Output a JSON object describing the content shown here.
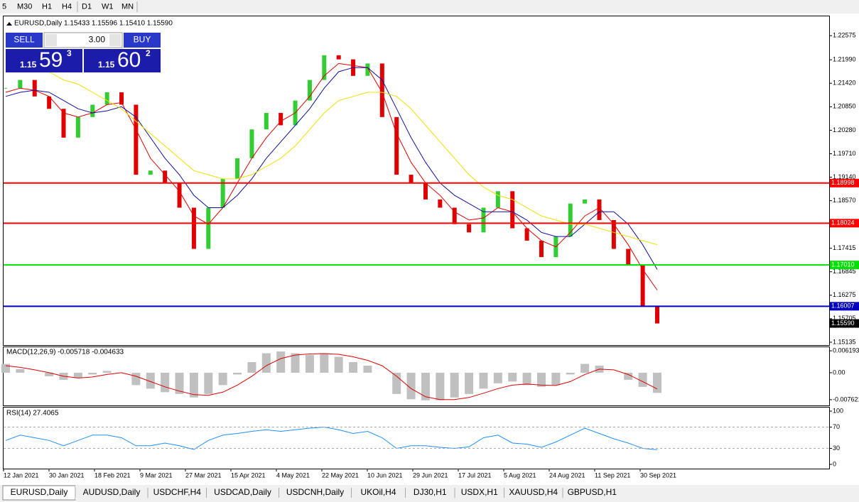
{
  "toolbar": {
    "timeframes": [
      "5",
      "M30",
      "H1",
      "H4",
      "D1",
      "W1",
      "MN"
    ]
  },
  "trade_panel": {
    "sell": "SELL",
    "buy": "BUY",
    "volume": "3.00",
    "sell_price": {
      "big": "1.15",
      "pips": "59",
      "point": "3"
    },
    "buy_price": {
      "big": "1.15",
      "pips": "60",
      "point": "2"
    }
  },
  "chart_data": [
    {
      "type": "candlestick",
      "title": "EURUSD,Daily",
      "subtitle": "1.15433 1.15596 1.15410 1.15590",
      "up_color": "#32cd32",
      "down_color": "#e00000",
      "values": [
        1.213,
        1.215,
        1.211,
        1.208,
        1.201,
        1.206,
        1.209,
        1.212,
        1.209,
        1.192,
        1.193,
        1.19,
        1.184,
        1.174,
        1.184,
        1.191,
        1.196,
        1.203,
        1.207,
        1.204,
        1.21,
        1.215,
        1.221,
        1.22,
        1.216,
        1.219,
        1.206,
        1.192,
        1.19,
        1.186,
        1.184,
        1.18,
        1.178,
        1.184,
        1.188,
        1.179,
        1.176,
        1.172,
        1.177,
        1.185,
        1.186,
        1.181,
        1.174,
        1.17,
        1.16,
        1.1559
      ],
      "series": [
        {
          "color": "#e00000",
          "values": [
            1.212,
            1.213,
            1.2125,
            1.211,
            1.207,
            1.206,
            1.207,
            1.209,
            1.2095,
            1.203,
            1.196,
            1.192,
            1.188,
            1.182,
            1.18,
            1.184,
            1.19,
            1.196,
            1.201,
            1.205,
            1.207,
            1.211,
            1.216,
            1.219,
            1.2185,
            1.218,
            1.212,
            1.202,
            1.195,
            1.19,
            1.187,
            1.183,
            1.181,
            1.1815,
            1.184,
            1.183,
            1.179,
            1.176,
            1.1745,
            1.178,
            1.182,
            1.184,
            1.18,
            1.175,
            1.169,
            1.164
          ]
        },
        {
          "color": "#1010a0",
          "values": [
            1.211,
            1.212,
            1.2125,
            1.212,
            1.21,
            1.208,
            1.207,
            1.2075,
            1.2085,
            1.206,
            1.201,
            1.196,
            1.192,
            1.187,
            1.184,
            1.184,
            1.187,
            1.191,
            1.196,
            1.2,
            1.204,
            1.208,
            1.213,
            1.217,
            1.218,
            1.218,
            1.215,
            1.208,
            1.201,
            1.195,
            1.19,
            1.187,
            1.185,
            1.183,
            1.183,
            1.183,
            1.181,
            1.178,
            1.177,
            1.177,
            1.18,
            1.183,
            1.183,
            1.18,
            1.175,
            1.169
          ]
        },
        {
          "color": "#f0e000",
          "values": [
            null,
            null,
            1.219,
            1.217,
            1.215,
            1.214,
            1.212,
            1.21,
            1.208,
            1.205,
            1.202,
            1.199,
            1.196,
            1.193,
            1.192,
            1.191,
            1.191,
            1.192,
            1.194,
            1.196,
            1.199,
            1.203,
            1.207,
            1.21,
            1.211,
            1.212,
            1.212,
            1.211,
            1.208,
            1.204,
            1.2,
            1.196,
            1.192,
            1.189,
            1.187,
            1.186,
            1.184,
            1.182,
            1.181,
            1.18,
            1.18,
            1.179,
            1.178,
            1.177,
            1.176,
            1.175
          ]
        }
      ],
      "ylim": [
        1.15065,
        1.23062
      ],
      "yticks": [
        {
          "value": 1.22575,
          "label": "1.22575"
        },
        {
          "value": 1.2199,
          "label": "1.21990"
        },
        {
          "value": 1.2142,
          "label": "1.21420"
        },
        {
          "value": 1.2085,
          "label": "1.20850"
        },
        {
          "value": 1.2028,
          "label": "1.20280"
        },
        {
          "value": 1.1971,
          "label": "1.19710"
        },
        {
          "value": 1.1914,
          "label": "1.19140"
        },
        {
          "value": 1.1857,
          "label": "1.18570"
        },
        {
          "value": 1.17415,
          "label": "1.17415"
        },
        {
          "value": 1.16845,
          "label": "1.16845"
        },
        {
          "value": 1.16275,
          "label": "1.16275"
        },
        {
          "value": 1.15705,
          "label": "1.15705"
        },
        {
          "value": 1.15135,
          "label": "1.15135"
        }
      ],
      "levels": [
        {
          "value": 1.18998,
          "label": "1.18998",
          "color": "#ff0000"
        },
        {
          "value": 1.18024,
          "label": "1.18024",
          "color": "#ff0000"
        },
        {
          "value": 1.1701,
          "label": "1.17010",
          "color": "#00e000"
        },
        {
          "value": 1.16007,
          "label": "1.16007",
          "color": "#0000c0"
        },
        {
          "value": 1.1559,
          "label": "1.15590",
          "color": "#000000"
        }
      ],
      "date_labels": [
        "12 Jan 2021",
        "30 Jan 2021",
        "18 Feb 2021",
        "9 Mar 2021",
        "27 Mar 2021",
        "15 Apr 2021",
        "4 May 2021",
        "22 May 2021",
        "10 Jun 2021",
        "29 Jun 2021",
        "17 Jul 2021",
        "5 Aug 2021",
        "24 Aug 2021",
        "11 Sep 2021",
        "30 Sep 2021"
      ]
    },
    {
      "type": "bar",
      "title": "MACD(12,26,9) -0.005718 -0.004633",
      "color": "#c0c0c0",
      "values": [
        0.0025,
        0.001,
        0.0,
        -0.001,
        -0.002,
        -0.0015,
        -0.0005,
        0.0005,
        0.0,
        -0.0035,
        -0.0045,
        -0.0055,
        -0.006,
        -0.007,
        -0.006,
        -0.0035,
        -0.0005,
        0.003,
        0.0055,
        0.006,
        0.0055,
        0.005,
        0.0055,
        0.0045,
        0.003,
        0.002,
        0.0,
        -0.006,
        -0.0075,
        -0.0078,
        -0.0078,
        -0.007,
        -0.006,
        -0.0045,
        -0.003,
        -0.0025,
        -0.0035,
        -0.004,
        -0.0035,
        -0.0005,
        0.0025,
        0.002,
        0.0,
        -0.002,
        -0.004,
        -0.0057
      ],
      "series": [
        {
          "color": "#e00000",
          "values": [
            0.002,
            0.0015,
            0.0008,
            0.0,
            -0.001,
            -0.0015,
            -0.0012,
            -0.0005,
            0.0,
            -0.001,
            -0.0025,
            -0.004,
            -0.0052,
            -0.0062,
            -0.0064,
            -0.0055,
            -0.0035,
            -0.001,
            0.002,
            0.004,
            0.005,
            0.0053,
            0.0054,
            0.0052,
            0.0045,
            0.0035,
            0.002,
            -0.001,
            -0.0045,
            -0.0068,
            -0.0076,
            -0.0076,
            -0.007,
            -0.0058,
            -0.0045,
            -0.0035,
            -0.0032,
            -0.0035,
            -0.0036,
            -0.0025,
            -0.0005,
            0.001,
            0.0008,
            -0.0005,
            -0.0025,
            -0.0046
          ]
        }
      ],
      "ylim": [
        -0.00945,
        0.00741
      ],
      "yticks": [
        0.006193,
        {
          "value": 0,
          "label": "0.00"
        },
        -0.007621
      ]
    },
    {
      "type": "line",
      "title": "RSI(14) 27.4065",
      "color": "#1e90ff",
      "values": [
        45,
        55,
        50,
        45,
        35,
        45,
        55,
        55,
        50,
        35,
        35,
        40,
        35,
        28,
        45,
        55,
        58,
        62,
        65,
        62,
        65,
        68,
        70,
        65,
        58,
        62,
        50,
        30,
        35,
        35,
        32,
        30,
        33,
        50,
        55,
        40,
        38,
        32,
        42,
        55,
        68,
        58,
        48,
        40,
        30,
        27.4065
      ],
      "ylim": [
        -8,
        108
      ],
      "yticks": [
        100,
        70,
        30,
        0
      ],
      "levels": [
        70,
        30
      ]
    }
  ],
  "tabs": [
    "EURUSD,Daily",
    "AUDUSD,Daily",
    "USDCHF,H4",
    "USDCAD,Daily",
    "USDCNH,Daily",
    "UKOil,H4",
    "DJ30,H1",
    "USDX,H1",
    "XAUUSD,H4",
    "GBPUSD,H1"
  ]
}
